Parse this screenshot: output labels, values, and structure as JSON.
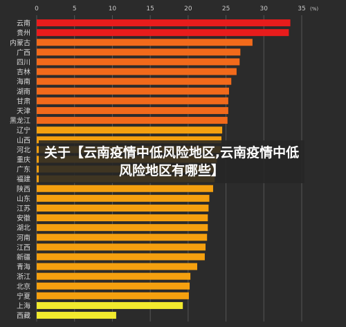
{
  "overlay_title": "关于【云南疫情中低风险地区,云南疫情中低风险地区有哪些】",
  "chart_data": {
    "type": "bar",
    "orientation": "horizontal",
    "title": "",
    "xlabel": "",
    "ylabel": "",
    "unit": "(%)",
    "xlim": [
      0,
      35
    ],
    "xticks": [
      0,
      5,
      10,
      15,
      20,
      25,
      30,
      35
    ],
    "grid": true,
    "categories": [
      "云南",
      "贵州",
      "内蒙古",
      "广西",
      "四川",
      "吉林",
      "海南",
      "湖南",
      "甘肃",
      "天津",
      "黑龙江",
      "辽宁",
      "山西",
      "河北",
      "重庆",
      "广东",
      "福建",
      "陕西",
      "山东",
      "江苏",
      "安徽",
      "湖北",
      "河南",
      "江西",
      "新疆",
      "青海",
      "浙江",
      "北京",
      "宁夏",
      "上海",
      "西藏"
    ],
    "values": [
      33.5,
      33.3,
      28.5,
      26.9,
      26.8,
      26.4,
      25.7,
      25.4,
      25.3,
      25.3,
      25.2,
      24.5,
      24.4,
      24.3,
      23.8,
      23.5,
      23.5,
      23.3,
      22.8,
      22.7,
      22.6,
      22.6,
      22.5,
      22.3,
      22.2,
      21.2,
      20.3,
      20.2,
      20.1,
      19.3,
      10.5
    ],
    "colors": {
      "top": "#e81c1c",
      "high": "#f26a1b",
      "mid": "#f5a00f",
      "low": "#f2ea2e",
      "grid": "#555555",
      "axis_text": "#cccccc",
      "category_text": "#d8d8d8"
    },
    "band_of_category": [
      "top",
      "top",
      "high",
      "high",
      "high",
      "high",
      "high",
      "high",
      "high",
      "high",
      "high",
      "mid",
      "mid",
      "mid",
      "mid",
      "mid",
      "mid",
      "mid",
      "mid",
      "mid",
      "mid",
      "mid",
      "mid",
      "mid",
      "mid",
      "mid",
      "mid",
      "mid",
      "mid",
      "low",
      "low"
    ]
  }
}
